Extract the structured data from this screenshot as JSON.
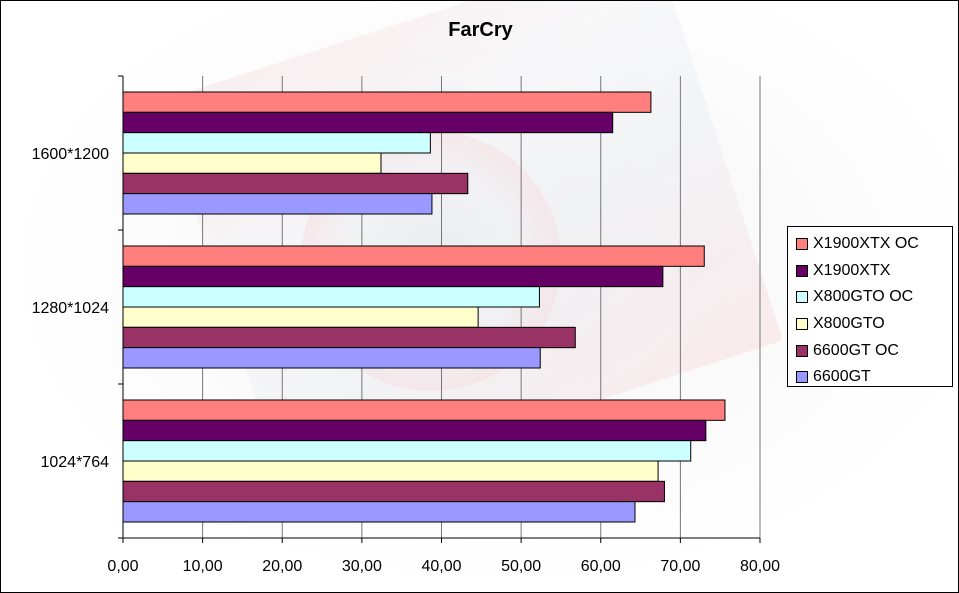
{
  "chart_data": {
    "type": "bar",
    "orientation": "horizontal",
    "title": "FarCry",
    "xlabel": "",
    "ylabel": "",
    "xlim": [
      0,
      80
    ],
    "x_ticks": [
      "0,00",
      "10,00",
      "20,00",
      "30,00",
      "40,00",
      "50,00",
      "60,00",
      "70,00",
      "80,00"
    ],
    "categories": [
      "1600*1200",
      "1280*1024",
      "1024*764"
    ],
    "grid": true,
    "legend_position": "right",
    "series": [
      {
        "name": "X1900XTX OC",
        "color": "#ff7f7f",
        "values": [
          66.3,
          73.0,
          75.6
        ]
      },
      {
        "name": "X1900XTX",
        "color": "#660066",
        "values": [
          61.5,
          67.8,
          73.2
        ]
      },
      {
        "name": "X800GTO OC",
        "color": "#ccffff",
        "values": [
          38.6,
          52.3,
          71.3
        ]
      },
      {
        "name": "X800GTO",
        "color": "#ffffcc",
        "values": [
          32.4,
          44.6,
          67.2
        ]
      },
      {
        "name": "6600GT OC",
        "color": "#993366",
        "values": [
          43.3,
          56.8,
          68.0
        ]
      },
      {
        "name": "6600GT",
        "color": "#9999ff",
        "values": [
          38.8,
          52.4,
          64.3
        ]
      }
    ]
  }
}
